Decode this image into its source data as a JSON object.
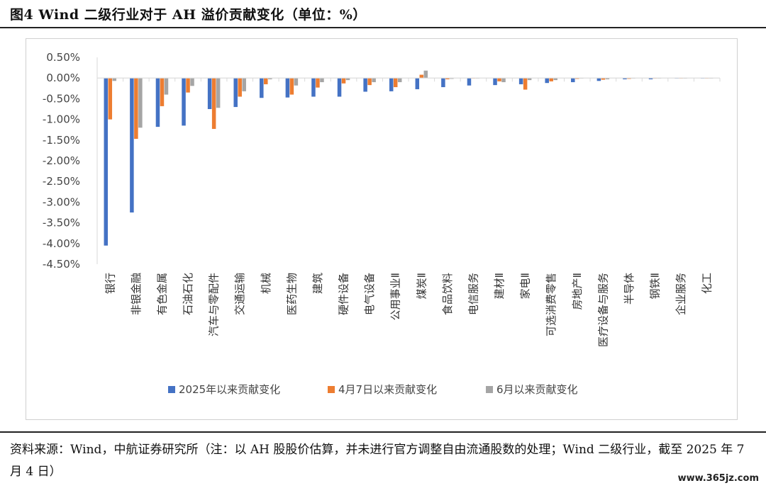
{
  "header": {
    "title": "图4  Wind 二级行业对于 AH 溢价贡献变化（单位：%）"
  },
  "footer": {
    "source": "资料来源：Wind，中航证券研究所（注：以 AH 股股价估算，并未进行官方调整自由流通股数的处理；Wind 二级行业，截至 2025 年 7 月 4 日）",
    "watermark": "www.365jz.com"
  },
  "chart_data": {
    "type": "bar",
    "title": "",
    "xlabel": "",
    "ylabel": "",
    "ylim": [
      -4.5,
      0.5
    ],
    "yticks": [
      "0.50%",
      "0.00%",
      "-0.50%",
      "-1.00%",
      "-1.50%",
      "-2.00%",
      "-2.50%",
      "-3.00%",
      "-3.50%",
      "-4.00%",
      "-4.50%"
    ],
    "ytick_values": [
      0.5,
      0,
      -0.5,
      -1.0,
      -1.5,
      -2.0,
      -2.5,
      -3.0,
      -3.5,
      -4.0,
      -4.5
    ],
    "grid": false,
    "legend_position": "bottom",
    "categories": [
      "银行",
      "非银金融",
      "有色金属",
      "石油石化",
      "汽车与零配件",
      "交通运输",
      "机械",
      "医药生物",
      "建筑",
      "硬件设备",
      "电气设备",
      "公用事业Ⅱ",
      "煤炭Ⅱ",
      "食品饮料",
      "电信服务",
      "建材Ⅱ",
      "家电Ⅱ",
      "可选消费零售",
      "房地产Ⅱ",
      "医疗设备与服务",
      "半导体",
      "钢铁Ⅱ",
      "企业服务",
      "化工"
    ],
    "series": [
      {
        "name": "2025年以来贡献变化",
        "color": "#4472C4",
        "values": [
          -4.05,
          -3.25,
          -1.18,
          -1.15,
          -0.75,
          -0.7,
          -0.48,
          -0.47,
          -0.45,
          -0.45,
          -0.33,
          -0.32,
          -0.27,
          -0.22,
          -0.18,
          -0.17,
          -0.15,
          -0.12,
          -0.1,
          -0.07,
          -0.03,
          -0.03,
          -0.01,
          -0.01
        ]
      },
      {
        "name": "4月7日以来贡献变化",
        "color": "#ED7D31",
        "values": [
          -1.0,
          -1.47,
          -0.68,
          -0.35,
          -1.23,
          -0.45,
          -0.15,
          -0.4,
          -0.23,
          -0.13,
          -0.17,
          -0.22,
          0.08,
          -0.03,
          -0.01,
          -0.08,
          -0.28,
          -0.08,
          -0.02,
          -0.04,
          -0.02,
          -0.01,
          -0.01,
          0.0
        ]
      },
      {
        "name": "6月以来贡献变化",
        "color": "#A5A5A5",
        "values": [
          -0.07,
          -1.2,
          -0.4,
          -0.19,
          -0.72,
          -0.32,
          -0.03,
          -0.18,
          -0.1,
          -0.05,
          -0.1,
          -0.1,
          0.18,
          -0.02,
          -0.01,
          -0.1,
          -0.05,
          -0.05,
          -0.01,
          -0.03,
          -0.01,
          -0.01,
          0.0,
          0.0
        ]
      }
    ]
  }
}
